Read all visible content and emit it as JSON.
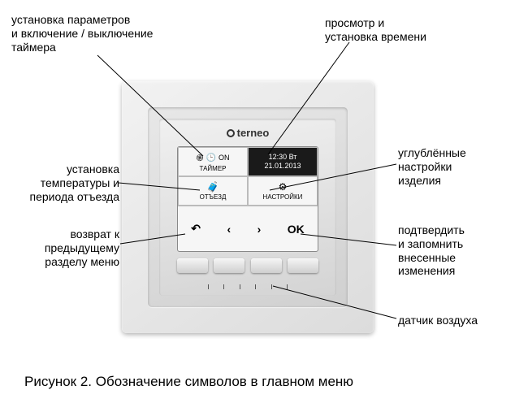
{
  "callouts": {
    "timer_params": "установка параметров\nи включение / выключение таймера",
    "time_view": "просмотр и\nустановка времени",
    "temp_depart": "установка\nтемпературы и\nпериода отъезда",
    "deep_settings": "углублённые\nнастройки\nизделия",
    "back": "возврат к\nпредыдущему\nразделу меню",
    "confirm": "подтвердить\nи запомнить\nвнесенные\nизменения",
    "sensor": "датчик воздуха"
  },
  "brand": "terneo",
  "screen": {
    "timer_on": "ON",
    "timer_label": "ТАЙМЕР",
    "time": "12:30 Вт",
    "date": "21.01.2013",
    "depart_label": "ОТЪЕЗД",
    "settings_label": "НАСТРОЙКИ",
    "nav_back": "↶",
    "nav_left": "‹",
    "nav_right": "›",
    "nav_ok": "OK"
  },
  "caption": "Рисунок 2. Обозначение символов в главном меню",
  "colors": {
    "bg": "#ffffff",
    "text": "#000000",
    "frame_light": "#f2f2f2",
    "frame_dark": "#d0d0d0",
    "screen_bg": "#f6f6f6",
    "screen_dark": "#1a1a1a"
  }
}
